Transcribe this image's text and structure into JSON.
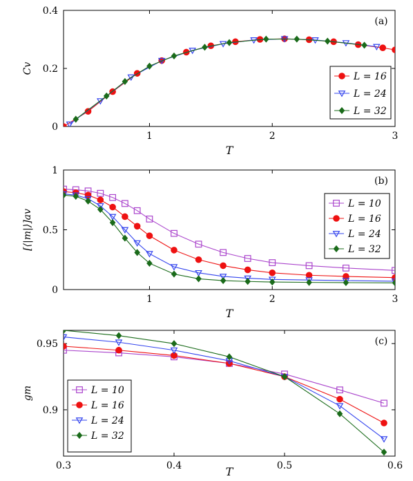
{
  "chart_data": [
    {
      "type": "line",
      "panel_label": "(a)",
      "xlabel": "T",
      "ylabel": "Cv",
      "xlim": [
        0.3,
        3.0
      ],
      "ylim": [
        0,
        0.4
      ],
      "xticks": [
        1,
        2,
        3
      ],
      "xtick_labels": [
        "1",
        "2",
        "3"
      ],
      "yticks": [
        0,
        0.2,
        0.4
      ],
      "ytick_labels": [
        "0",
        "0.2",
        "0.4"
      ],
      "legend": "bottom-right",
      "series": [
        {
          "name": "L = 16",
          "color": "#ee1111",
          "marker": "circle",
          "x": [
            0.3,
            0.5,
            0.7,
            0.9,
            1.1,
            1.3,
            1.5,
            1.7,
            1.9,
            2.1,
            2.3,
            2.5,
            2.7,
            2.9,
            3.0
          ],
          "y": [
            0.0,
            0.052,
            0.12,
            0.183,
            0.227,
            0.256,
            0.278,
            0.292,
            0.3,
            0.302,
            0.299,
            0.292,
            0.282,
            0.271,
            0.264
          ]
        },
        {
          "name": "L = 24",
          "color": "#3344ee",
          "marker": "triangle-down-open",
          "x": [
            0.35,
            0.6,
            0.85,
            1.1,
            1.35,
            1.6,
            1.85,
            2.1,
            2.35,
            2.6,
            2.85
          ],
          "y": [
            0.008,
            0.088,
            0.17,
            0.227,
            0.262,
            0.285,
            0.298,
            0.302,
            0.298,
            0.288,
            0.275
          ]
        },
        {
          "name": "L = 32",
          "color": "#1a6b1a",
          "marker": "diamond",
          "x": [
            0.4,
            0.65,
            0.8,
            1.0,
            1.2,
            1.45,
            1.65,
            1.95,
            2.2,
            2.45,
            2.75
          ],
          "y": [
            0.025,
            0.105,
            0.155,
            0.208,
            0.243,
            0.273,
            0.289,
            0.301,
            0.301,
            0.294,
            0.28
          ]
        }
      ]
    },
    {
      "type": "line",
      "panel_label": "(b)",
      "xlabel": "T",
      "ylabel": "[⟨|m|⟩]av",
      "xlim": [
        0.3,
        3.0
      ],
      "ylim": [
        0,
        1
      ],
      "xticks": [
        1,
        2,
        3
      ],
      "xtick_labels": [
        "1",
        "2",
        "3"
      ],
      "yticks": [
        0,
        0.5,
        1
      ],
      "ytick_labels": [
        "0",
        "0.5",
        "1"
      ],
      "legend": "top-right",
      "series": [
        {
          "name": "L = 10",
          "color": "#aa44cc",
          "marker": "square-open",
          "x": [
            0.3,
            0.4,
            0.5,
            0.6,
            0.7,
            0.8,
            0.9,
            1.0,
            1.2,
            1.4,
            1.6,
            1.8,
            2.0,
            2.3,
            2.6,
            3.0
          ],
          "y": [
            0.84,
            0.835,
            0.825,
            0.805,
            0.77,
            0.72,
            0.66,
            0.59,
            0.47,
            0.38,
            0.31,
            0.26,
            0.225,
            0.2,
            0.18,
            0.16
          ]
        },
        {
          "name": "L = 16",
          "color": "#ee1111",
          "marker": "circle",
          "x": [
            0.3,
            0.4,
            0.5,
            0.6,
            0.7,
            0.8,
            0.9,
            1.0,
            1.2,
            1.4,
            1.6,
            1.8,
            2.0,
            2.3,
            2.6,
            3.0
          ],
          "y": [
            0.82,
            0.81,
            0.79,
            0.75,
            0.69,
            0.61,
            0.53,
            0.45,
            0.33,
            0.25,
            0.2,
            0.165,
            0.14,
            0.12,
            0.11,
            0.1
          ]
        },
        {
          "name": "L = 24",
          "color": "#3344ee",
          "marker": "triangle-down-open",
          "x": [
            0.3,
            0.4,
            0.5,
            0.6,
            0.7,
            0.8,
            0.9,
            1.0,
            1.2,
            1.4,
            1.6,
            1.8,
            2.0,
            2.3,
            2.6,
            3.0
          ],
          "y": [
            0.8,
            0.79,
            0.76,
            0.7,
            0.61,
            0.5,
            0.39,
            0.3,
            0.19,
            0.14,
            0.11,
            0.095,
            0.085,
            0.08,
            0.075,
            0.07
          ]
        },
        {
          "name": "L = 32",
          "color": "#1a6b1a",
          "marker": "diamond",
          "x": [
            0.3,
            0.4,
            0.5,
            0.6,
            0.7,
            0.8,
            0.9,
            1.0,
            1.2,
            1.4,
            1.6,
            1.8,
            2.0,
            2.3,
            2.6,
            3.0
          ],
          "y": [
            0.79,
            0.78,
            0.74,
            0.67,
            0.56,
            0.43,
            0.31,
            0.22,
            0.13,
            0.09,
            0.075,
            0.068,
            0.063,
            0.06,
            0.058,
            0.056
          ]
        }
      ]
    },
    {
      "type": "line",
      "panel_label": "(c)",
      "xlabel": "T",
      "ylabel": "gm",
      "xlim": [
        0.3,
        0.6
      ],
      "ylim": [
        0.865,
        0.96
      ],
      "xticks": [
        0.3,
        0.4,
        0.5,
        0.6
      ],
      "xtick_labels": [
        "0.3",
        "0.4",
        "0.5",
        "0.6"
      ],
      "yticks": [
        0.9,
        0.95
      ],
      "ytick_labels": [
        "0.9",
        "0.95"
      ],
      "legend": "bottom-left",
      "series": [
        {
          "name": "L = 10",
          "color": "#aa44cc",
          "marker": "square-open",
          "x": [
            0.3,
            0.35,
            0.4,
            0.45,
            0.5,
            0.55,
            0.59
          ],
          "y": [
            0.945,
            0.943,
            0.94,
            0.935,
            0.927,
            0.915,
            0.905
          ]
        },
        {
          "name": "L = 16",
          "color": "#ee1111",
          "marker": "circle",
          "x": [
            0.3,
            0.35,
            0.4,
            0.45,
            0.5,
            0.55,
            0.59
          ],
          "y": [
            0.948,
            0.945,
            0.941,
            0.935,
            0.925,
            0.908,
            0.89
          ]
        },
        {
          "name": "L = 24",
          "color": "#3344ee",
          "marker": "triangle-down-open",
          "x": [
            0.3,
            0.35,
            0.4,
            0.45,
            0.5,
            0.55,
            0.59
          ],
          "y": [
            0.955,
            0.951,
            0.945,
            0.937,
            0.925,
            0.903,
            0.878
          ]
        },
        {
          "name": "L = 32",
          "color": "#1a6b1a",
          "marker": "diamond",
          "x": [
            0.3,
            0.35,
            0.4,
            0.45,
            0.5,
            0.55,
            0.59
          ],
          "y": [
            0.96,
            0.956,
            0.95,
            0.94,
            0.925,
            0.897,
            0.868
          ]
        }
      ]
    }
  ]
}
